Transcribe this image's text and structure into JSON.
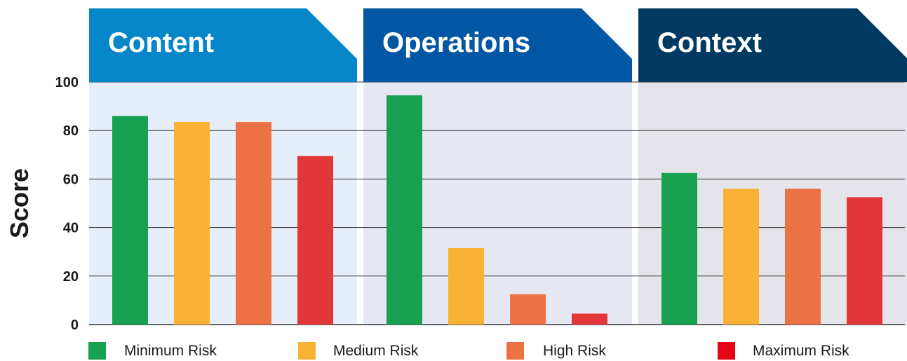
{
  "chart_data": {
    "type": "bar",
    "ylabel": "Score",
    "ylim": [
      0,
      100
    ],
    "yticks": [
      0,
      20,
      40,
      60,
      80,
      100
    ],
    "grid": true,
    "legend_position": "bottom",
    "groups": [
      {
        "name": "Content",
        "color": "#0586c8",
        "panel": "#e6eff9"
      },
      {
        "name": "Operations",
        "color": "#0157a3",
        "panel": "#e5e8f2"
      },
      {
        "name": "Context",
        "color": "#003a62",
        "panel": "#e4e4ea"
      }
    ],
    "series": [
      {
        "name": "Minimum Risk",
        "color": "#18a151",
        "values": [
          86,
          94.5,
          62.5
        ]
      },
      {
        "name": "Medium Risk",
        "color": "#f9b233",
        "values": [
          83.5,
          31.5,
          56
        ]
      },
      {
        "name": "High Risk",
        "color": "#ec7143",
        "values": [
          83.5,
          12.5,
          56
        ]
      },
      {
        "name": "Maximum Risk",
        "color": "#e33737",
        "legend_color": "#e30613",
        "values": [
          69.5,
          4.5,
          52.5
        ]
      }
    ]
  }
}
